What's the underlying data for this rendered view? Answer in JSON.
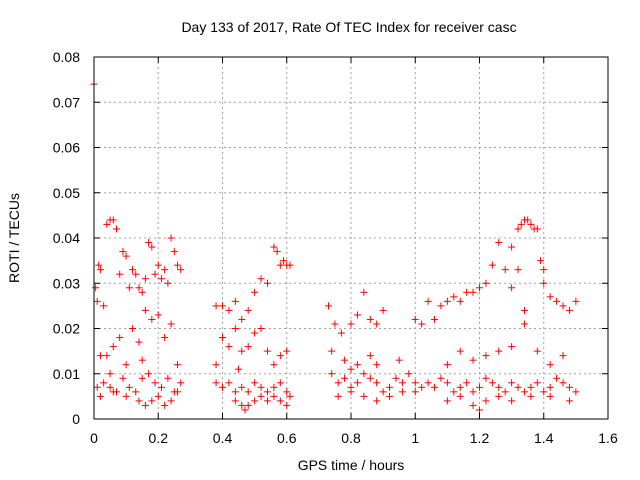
{
  "chart_data": {
    "type": "scatter",
    "title": "Day 133 of 2017, Rate Of TEC Index for receiver casc",
    "xlabel": "GPS time / hours",
    "ylabel": "ROTI / TECUs",
    "xlim": [
      0,
      1.6
    ],
    "ylim": [
      0,
      0.08
    ],
    "xticks": [
      0,
      0.2,
      0.4,
      0.6,
      0.8,
      1,
      1.2,
      1.4,
      1.6
    ],
    "xtick_labels": [
      "0",
      "0.2",
      "0.4",
      "0.6",
      "0.8",
      "1",
      "1.2",
      "1.4",
      "1.6"
    ],
    "yticks": [
      0,
      0.01,
      0.02,
      0.03,
      0.04,
      0.05,
      0.06,
      0.07,
      0.08
    ],
    "ytick_labels": [
      "0",
      "0.01",
      "0.02",
      "0.03",
      "0.04",
      "0.05",
      "0.06",
      "0.07",
      "0.08"
    ],
    "grid": true,
    "marker": "plus",
    "color": "#ff0000",
    "series": [
      {
        "name": "ROTI",
        "points": [
          [
            0.0,
            0.074
          ],
          [
            0.005,
            0.029
          ],
          [
            0.01,
            0.026
          ],
          [
            0.015,
            0.034
          ],
          [
            0.02,
            0.033
          ],
          [
            0.03,
            0.025
          ],
          [
            0.04,
            0.043
          ],
          [
            0.05,
            0.044
          ],
          [
            0.06,
            0.044
          ],
          [
            0.07,
            0.042
          ],
          [
            0.08,
            0.032
          ],
          [
            0.09,
            0.037
          ],
          [
            0.1,
            0.036
          ],
          [
            0.11,
            0.029
          ],
          [
            0.12,
            0.033
          ],
          [
            0.13,
            0.032
          ],
          [
            0.14,
            0.029
          ],
          [
            0.15,
            0.028
          ],
          [
            0.16,
            0.031
          ],
          [
            0.17,
            0.039
          ],
          [
            0.18,
            0.038
          ],
          [
            0.19,
            0.032
          ],
          [
            0.2,
            0.034
          ],
          [
            0.21,
            0.031
          ],
          [
            0.22,
            0.033
          ],
          [
            0.23,
            0.03
          ],
          [
            0.24,
            0.04
          ],
          [
            0.25,
            0.037
          ],
          [
            0.26,
            0.034
          ],
          [
            0.27,
            0.033
          ],
          [
            0.02,
            0.014
          ],
          [
            0.04,
            0.014
          ],
          [
            0.06,
            0.016
          ],
          [
            0.08,
            0.018
          ],
          [
            0.1,
            0.012
          ],
          [
            0.12,
            0.02
          ],
          [
            0.14,
            0.017
          ],
          [
            0.16,
            0.024
          ],
          [
            0.18,
            0.022
          ],
          [
            0.2,
            0.023
          ],
          [
            0.22,
            0.018
          ],
          [
            0.24,
            0.021
          ],
          [
            0.26,
            0.012
          ],
          [
            0.05,
            0.01
          ],
          [
            0.15,
            0.013
          ],
          [
            0.01,
            0.007
          ],
          [
            0.03,
            0.008
          ],
          [
            0.05,
            0.007
          ],
          [
            0.07,
            0.006
          ],
          [
            0.09,
            0.009
          ],
          [
            0.11,
            0.007
          ],
          [
            0.13,
            0.006
          ],
          [
            0.15,
            0.009
          ],
          [
            0.17,
            0.01
          ],
          [
            0.19,
            0.008
          ],
          [
            0.21,
            0.007
          ],
          [
            0.23,
            0.009
          ],
          [
            0.25,
            0.006
          ],
          [
            0.27,
            0.008
          ],
          [
            0.02,
            0.005
          ],
          [
            0.06,
            0.006
          ],
          [
            0.1,
            0.005
          ],
          [
            0.14,
            0.004
          ],
          [
            0.16,
            0.003
          ],
          [
            0.18,
            0.004
          ],
          [
            0.2,
            0.005
          ],
          [
            0.22,
            0.003
          ],
          [
            0.24,
            0.004
          ],
          [
            0.26,
            0.006
          ],
          [
            0.38,
            0.025
          ],
          [
            0.4,
            0.025
          ],
          [
            0.42,
            0.024
          ],
          [
            0.44,
            0.026
          ],
          [
            0.46,
            0.022
          ],
          [
            0.48,
            0.024
          ],
          [
            0.5,
            0.028
          ],
          [
            0.52,
            0.031
          ],
          [
            0.54,
            0.03
          ],
          [
            0.56,
            0.038
          ],
          [
            0.57,
            0.037
          ],
          [
            0.58,
            0.034
          ],
          [
            0.59,
            0.035
          ],
          [
            0.6,
            0.034
          ],
          [
            0.61,
            0.034
          ],
          [
            0.4,
            0.018
          ],
          [
            0.42,
            0.016
          ],
          [
            0.44,
            0.02
          ],
          [
            0.46,
            0.015
          ],
          [
            0.48,
            0.016
          ],
          [
            0.5,
            0.019
          ],
          [
            0.52,
            0.02
          ],
          [
            0.54,
            0.015
          ],
          [
            0.56,
            0.012
          ],
          [
            0.58,
            0.014
          ],
          [
            0.6,
            0.015
          ],
          [
            0.38,
            0.012
          ],
          [
            0.45,
            0.011
          ],
          [
            0.38,
            0.008
          ],
          [
            0.4,
            0.007
          ],
          [
            0.42,
            0.008
          ],
          [
            0.44,
            0.006
          ],
          [
            0.46,
            0.007
          ],
          [
            0.48,
            0.006
          ],
          [
            0.5,
            0.008
          ],
          [
            0.52,
            0.007
          ],
          [
            0.54,
            0.006
          ],
          [
            0.56,
            0.007
          ],
          [
            0.58,
            0.008
          ],
          [
            0.6,
            0.006
          ],
          [
            0.61,
            0.005
          ],
          [
            0.44,
            0.004
          ],
          [
            0.46,
            0.003
          ],
          [
            0.47,
            0.002
          ],
          [
            0.48,
            0.003
          ],
          [
            0.5,
            0.004
          ],
          [
            0.52,
            0.005
          ],
          [
            0.54,
            0.004
          ],
          [
            0.56,
            0.005
          ],
          [
            0.58,
            0.004
          ],
          [
            0.6,
            0.003
          ],
          [
            0.73,
            0.025
          ],
          [
            0.75,
            0.021
          ],
          [
            0.77,
            0.019
          ],
          [
            0.8,
            0.021
          ],
          [
            0.82,
            0.023
          ],
          [
            0.84,
            0.028
          ],
          [
            0.86,
            0.022
          ],
          [
            0.88,
            0.021
          ],
          [
            0.9,
            0.024
          ],
          [
            0.74,
            0.015
          ],
          [
            0.78,
            0.013
          ],
          [
            0.82,
            0.012
          ],
          [
            0.86,
            0.014
          ],
          [
            0.74,
            0.01
          ],
          [
            0.76,
            0.008
          ],
          [
            0.78,
            0.009
          ],
          [
            0.8,
            0.007
          ],
          [
            0.82,
            0.008
          ],
          [
            0.84,
            0.01
          ],
          [
            0.86,
            0.009
          ],
          [
            0.88,
            0.008
          ],
          [
            0.9,
            0.006
          ],
          [
            0.92,
            0.007
          ],
          [
            0.94,
            0.009
          ],
          [
            0.96,
            0.008
          ],
          [
            0.98,
            0.01
          ],
          [
            1.0,
            0.008
          ],
          [
            1.02,
            0.007
          ],
          [
            0.76,
            0.005
          ],
          [
            0.8,
            0.006
          ],
          [
            0.84,
            0.005
          ],
          [
            0.88,
            0.004
          ],
          [
            0.92,
            0.005
          ],
          [
            0.96,
            0.006
          ],
          [
            1.0,
            0.006
          ],
          [
            0.8,
            0.011
          ],
          [
            0.88,
            0.012
          ],
          [
            0.95,
            0.013
          ],
          [
            1.0,
            0.022
          ],
          [
            1.02,
            0.021
          ],
          [
            1.04,
            0.026
          ],
          [
            1.06,
            0.022
          ],
          [
            1.08,
            0.025
          ],
          [
            1.1,
            0.026
          ],
          [
            1.12,
            0.027
          ],
          [
            1.14,
            0.026
          ],
          [
            1.16,
            0.028
          ],
          [
            1.18,
            0.028
          ],
          [
            1.2,
            0.029
          ],
          [
            1.22,
            0.03
          ],
          [
            1.24,
            0.034
          ],
          [
            1.26,
            0.039
          ],
          [
            1.28,
            0.033
          ],
          [
            1.3,
            0.038
          ],
          [
            1.32,
            0.042
          ],
          [
            1.33,
            0.043
          ],
          [
            1.34,
            0.044
          ],
          [
            1.35,
            0.044
          ],
          [
            1.36,
            0.043
          ],
          [
            1.37,
            0.042
          ],
          [
            1.38,
            0.042
          ],
          [
            1.39,
            0.035
          ],
          [
            1.4,
            0.03
          ],
          [
            1.42,
            0.027
          ],
          [
            1.44,
            0.026
          ],
          [
            1.46,
            0.025
          ],
          [
            1.48,
            0.024
          ],
          [
            1.5,
            0.026
          ],
          [
            1.3,
            0.029
          ],
          [
            1.32,
            0.033
          ],
          [
            1.34,
            0.024
          ],
          [
            1.4,
            0.033
          ],
          [
            1.1,
            0.012
          ],
          [
            1.14,
            0.015
          ],
          [
            1.18,
            0.013
          ],
          [
            1.22,
            0.014
          ],
          [
            1.26,
            0.015
          ],
          [
            1.3,
            0.016
          ],
          [
            1.34,
            0.021
          ],
          [
            1.38,
            0.015
          ],
          [
            1.42,
            0.012
          ],
          [
            1.46,
            0.014
          ],
          [
            1.04,
            0.008
          ],
          [
            1.06,
            0.007
          ],
          [
            1.08,
            0.009
          ],
          [
            1.1,
            0.008
          ],
          [
            1.12,
            0.006
          ],
          [
            1.14,
            0.007
          ],
          [
            1.16,
            0.008
          ],
          [
            1.18,
            0.006
          ],
          [
            1.2,
            0.007
          ],
          [
            1.22,
            0.009
          ],
          [
            1.24,
            0.008
          ],
          [
            1.26,
            0.007
          ],
          [
            1.28,
            0.006
          ],
          [
            1.3,
            0.008
          ],
          [
            1.32,
            0.007
          ],
          [
            1.34,
            0.006
          ],
          [
            1.36,
            0.007
          ],
          [
            1.38,
            0.008
          ],
          [
            1.4,
            0.006
          ],
          [
            1.42,
            0.007
          ],
          [
            1.44,
            0.009
          ],
          [
            1.46,
            0.008
          ],
          [
            1.48,
            0.007
          ],
          [
            1.5,
            0.006
          ],
          [
            1.1,
            0.004
          ],
          [
            1.14,
            0.005
          ],
          [
            1.18,
            0.003
          ],
          [
            1.2,
            0.002
          ],
          [
            1.22,
            0.004
          ],
          [
            1.26,
            0.005
          ],
          [
            1.3,
            0.004
          ],
          [
            1.36,
            0.005
          ],
          [
            1.42,
            0.005
          ],
          [
            1.48,
            0.004
          ]
        ]
      }
    ]
  }
}
